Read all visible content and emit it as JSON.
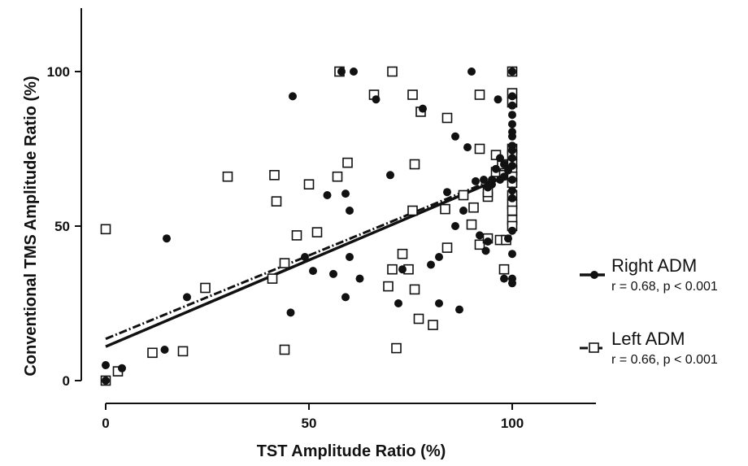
{
  "chart_data": {
    "type": "scatter",
    "xlabel": "TST Amplitude Ratio (%)",
    "ylabel": "Conventional TMS Amplitude Ratio (%)",
    "xlim": [
      0,
      120
    ],
    "ylim": [
      0,
      120
    ],
    "x_ticks": [
      "0",
      "50",
      "100"
    ],
    "y_ticks": [
      "0",
      "50",
      "100"
    ],
    "grid": false,
    "legend_position": "right",
    "series": [
      {
        "name": "Right ADM",
        "stat": "r = 0.68, p < 0.001",
        "marker": "filled-circle",
        "line_style": "solid",
        "fit": {
          "intercept": 11,
          "slope": 0.56
        },
        "points": [
          [
            0,
            0
          ],
          [
            0,
            5
          ],
          [
            4,
            4
          ],
          [
            14.5,
            10
          ],
          [
            15,
            46
          ],
          [
            20,
            27
          ],
          [
            45.5,
            22
          ],
          [
            46,
            92
          ],
          [
            49,
            40
          ],
          [
            51,
            35.5
          ],
          [
            54.5,
            60
          ],
          [
            56,
            34.5
          ],
          [
            58,
            100
          ],
          [
            59,
            27
          ],
          [
            59,
            60.5
          ],
          [
            60,
            40
          ],
          [
            60,
            55
          ],
          [
            61,
            100
          ],
          [
            62.5,
            33
          ],
          [
            66.5,
            91
          ],
          [
            70,
            66.5
          ],
          [
            72,
            25
          ],
          [
            73,
            36
          ],
          [
            78,
            88
          ],
          [
            80,
            37.5
          ],
          [
            82,
            40
          ],
          [
            82,
            25
          ],
          [
            84,
            61
          ],
          [
            86,
            50
          ],
          [
            86,
            79
          ],
          [
            87,
            23
          ],
          [
            88,
            55
          ],
          [
            89,
            75.5
          ],
          [
            90,
            100
          ],
          [
            91,
            64.5
          ],
          [
            92,
            47
          ],
          [
            93,
            65
          ],
          [
            93.5,
            42
          ],
          [
            94,
            45
          ],
          [
            94,
            62.5
          ],
          [
            95,
            63.5
          ],
          [
            95,
            65
          ],
          [
            96,
            68.5
          ],
          [
            96.5,
            91
          ],
          [
            97,
            72
          ],
          [
            97,
            65
          ],
          [
            98,
            33
          ],
          [
            98,
            66
          ],
          [
            98,
            70
          ],
          [
            99,
            46
          ],
          [
            99,
            68
          ],
          [
            100,
            31.5
          ],
          [
            100,
            33
          ],
          [
            100,
            41
          ],
          [
            100,
            48.5
          ],
          [
            100,
            59
          ],
          [
            100,
            61.5
          ],
          [
            100,
            65
          ],
          [
            100,
            69.5
          ],
          [
            100,
            72
          ],
          [
            100,
            74.5
          ],
          [
            100,
            76
          ],
          [
            100,
            79
          ],
          [
            100,
            80.5
          ],
          [
            100,
            83
          ],
          [
            100,
            86
          ],
          [
            100,
            89
          ],
          [
            100,
            92
          ],
          [
            100,
            100
          ]
        ]
      },
      {
        "name": "Left ADM",
        "stat": "r = 0.66, p < 0.001",
        "marker": "open-square",
        "line_style": "dash-dot",
        "fit": {
          "intercept": 13.5,
          "slope": 0.54
        },
        "points": [
          [
            0,
            0
          ],
          [
            0,
            49
          ],
          [
            3,
            3
          ],
          [
            11.5,
            9
          ],
          [
            19,
            9.5
          ],
          [
            24.5,
            30
          ],
          [
            30,
            66
          ],
          [
            41,
            33
          ],
          [
            41.5,
            66.5
          ],
          [
            42,
            58
          ],
          [
            44,
            10
          ],
          [
            44,
            38
          ],
          [
            47,
            47
          ],
          [
            50,
            63.5
          ],
          [
            52,
            48
          ],
          [
            57,
            66
          ],
          [
            57.5,
            100
          ],
          [
            59.5,
            70.5
          ],
          [
            66,
            92.5
          ],
          [
            69.5,
            30.5
          ],
          [
            70.5,
            100
          ],
          [
            70.5,
            36
          ],
          [
            71.5,
            10.5
          ],
          [
            73,
            41
          ],
          [
            74.5,
            36
          ],
          [
            75.5,
            55
          ],
          [
            75.5,
            92.5
          ],
          [
            76,
            29.5
          ],
          [
            76,
            70
          ],
          [
            77,
            20
          ],
          [
            77.5,
            87
          ],
          [
            80.5,
            18
          ],
          [
            83.5,
            55.5
          ],
          [
            84,
            85
          ],
          [
            84,
            43
          ],
          [
            88,
            60
          ],
          [
            90,
            50.5
          ],
          [
            90.5,
            56
          ],
          [
            92,
            92.5
          ],
          [
            92,
            75
          ],
          [
            92,
            44
          ],
          [
            94,
            59.5
          ],
          [
            94,
            61
          ],
          [
            94,
            46
          ],
          [
            96,
            73
          ],
          [
            96,
            67.5
          ],
          [
            97,
            45.5
          ],
          [
            97.5,
            70
          ],
          [
            98,
            66.5
          ],
          [
            98,
            36
          ],
          [
            98.5,
            45.5
          ],
          [
            100,
            100
          ],
          [
            100,
            93
          ],
          [
            100,
            90
          ],
          [
            100,
            75
          ],
          [
            100,
            73
          ],
          [
            100,
            70
          ],
          [
            100,
            68
          ],
          [
            100,
            66
          ],
          [
            100,
            64
          ],
          [
            100,
            60
          ],
          [
            100,
            57
          ],
          [
            100,
            55
          ],
          [
            100,
            52
          ],
          [
            100,
            50
          ]
        ]
      }
    ]
  }
}
